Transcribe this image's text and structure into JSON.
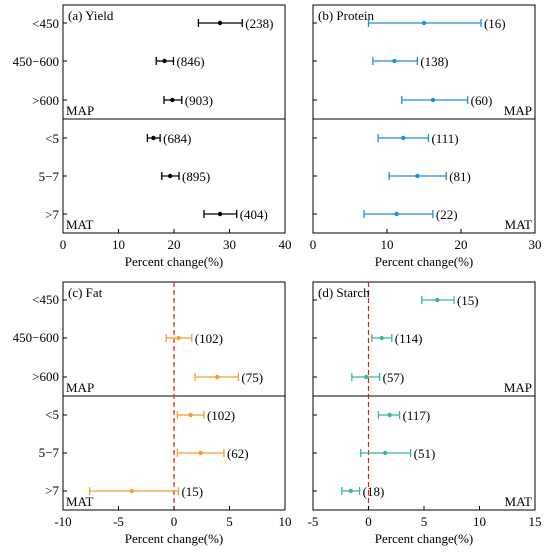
{
  "figure": {
    "row_labels": [
      "<450",
      "450−600",
      ">600",
      "<5",
      "5−7",
      ">7"
    ],
    "xlabel": "Percent change(%)",
    "group_labels": [
      "MAP",
      "MAT"
    ]
  },
  "chart_data": [
    {
      "type": "scatter",
      "title": "(a) Yield",
      "xlabel": "Percent change(%)",
      "xlim": [
        0,
        40
      ],
      "xticks": [
        0,
        10,
        20,
        30,
        40
      ],
      "color": "#000000",
      "zero_line": false,
      "group_label_side": "left",
      "categories": [
        "<450",
        "450−600",
        ">600",
        "<5",
        "5−7",
        ">7"
      ],
      "series": [
        {
          "mean": [
            28.3,
            18.3,
            19.7,
            16.3,
            19.3,
            28.3
          ],
          "lower": [
            24.4,
            16.8,
            18.2,
            15.2,
            17.8,
            25.4
          ],
          "upper": [
            32.3,
            19.9,
            21.4,
            17.5,
            20.9,
            31.3
          ],
          "n": [
            "(238)",
            "(846)",
            "(903)",
            "(684)",
            "(895)",
            "(404)"
          ]
        }
      ]
    },
    {
      "type": "scatter",
      "title": "(b) Protein",
      "xlabel": "Percent change(%)",
      "xlim": [
        0,
        30
      ],
      "xticks": [
        0,
        10,
        20,
        30
      ],
      "color": "#1f8fd6",
      "zero_line": false,
      "group_label_side": "right",
      "categories": [
        "<450",
        "450−600",
        ">600",
        "<5",
        "5−7",
        ">7"
      ],
      "series": [
        {
          "mean": [
            15.0,
            11.0,
            16.2,
            12.2,
            14.1,
            11.3
          ],
          "lower": [
            7.5,
            8.1,
            12.0,
            8.8,
            10.3,
            6.9
          ],
          "upper": [
            22.7,
            14.1,
            20.9,
            15.6,
            18.0,
            16.2
          ],
          "n": [
            "(16)",
            "(138)",
            "(60)",
            "(111)",
            "(81)",
            "(22)"
          ]
        }
      ]
    },
    {
      "type": "scatter",
      "title": "(c) Fat",
      "xlabel": "Percent change(%)",
      "xlim": [
        -10,
        10
      ],
      "xticks": [
        -10,
        -5,
        0,
        5,
        10
      ],
      "color": "#f0a030",
      "zero_line": true,
      "group_label_side": "left",
      "categories": [
        "<450",
        "450−600",
        ">600",
        "<5",
        "5−7",
        ">7"
      ],
      "series": [
        {
          "mean": [
            null,
            0.4,
            3.9,
            1.5,
            2.4,
            -3.8
          ],
          "lower": [
            null,
            -0.7,
            1.9,
            0.3,
            0.3,
            -7.6
          ],
          "upper": [
            null,
            1.6,
            5.8,
            2.7,
            4.5,
            0.4
          ],
          "n": [
            null,
            "(102)",
            "(75)",
            "(102)",
            "(62)",
            "(15)"
          ]
        }
      ]
    },
    {
      "type": "scatter",
      "title": "(d) Starch",
      "xlabel": "Percent change(%)",
      "xlim": [
        -5,
        15
      ],
      "xticks": [
        -5,
        0,
        5,
        10,
        15
      ],
      "color": "#3cb88a",
      "zero_line": true,
      "group_label_side": "right",
      "categories": [
        "<450",
        "450−600",
        ">600",
        "<5",
        "5−7",
        ">7"
      ],
      "series": [
        {
          "mean": [
            6.2,
            1.2,
            -0.2,
            1.9,
            1.5,
            -1.6
          ],
          "lower": [
            4.8,
            0.3,
            -1.5,
            0.9,
            -0.7,
            -2.4
          ],
          "upper": [
            7.7,
            2.1,
            1.0,
            2.8,
            3.8,
            -0.8
          ],
          "n": [
            "(15)",
            "(114)",
            "(57)",
            "(117)",
            "(51)",
            "(18)"
          ]
        }
      ]
    }
  ]
}
